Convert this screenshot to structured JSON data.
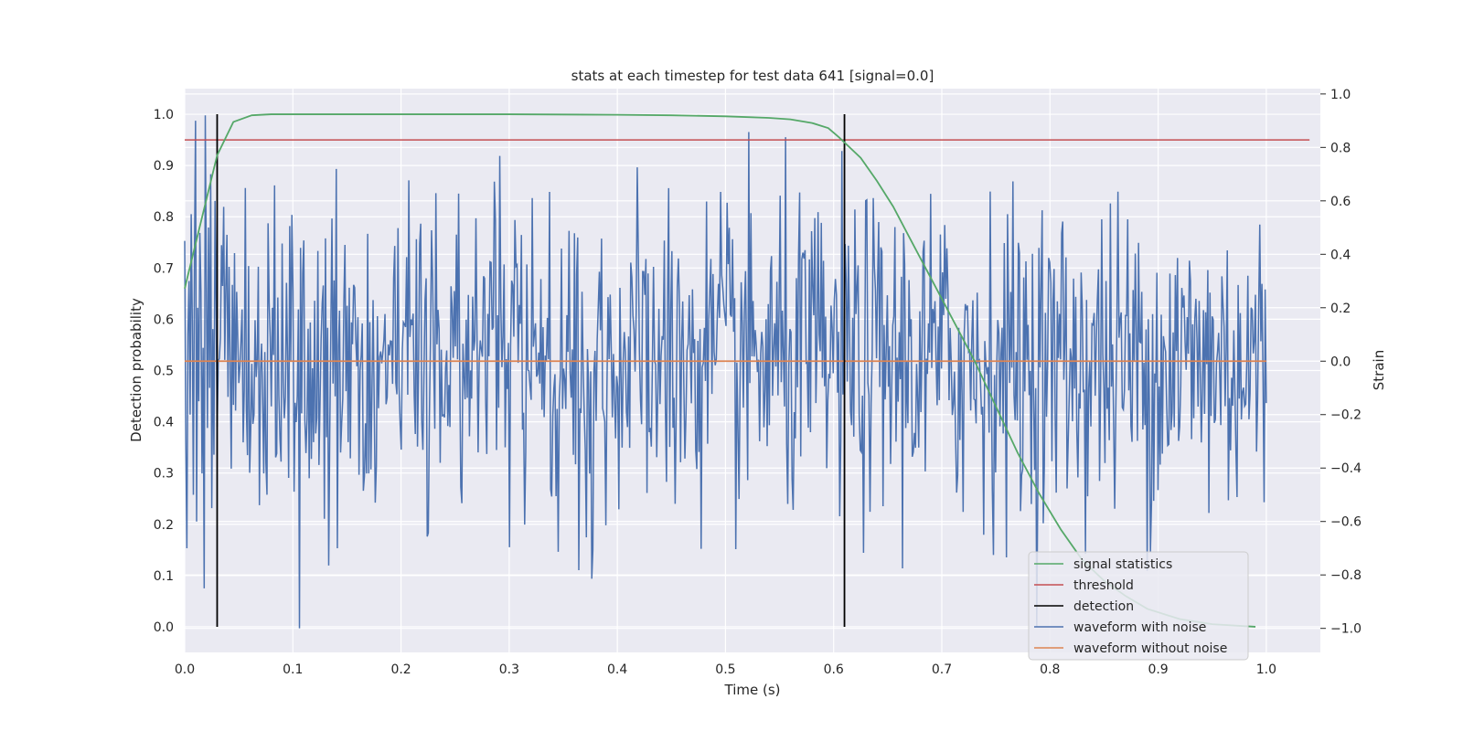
{
  "chart_data": {
    "type": "line",
    "title": "stats at each timestep for test data 641 [signal=0.0]",
    "xlabel": "Time (s)",
    "ylabel_left": "Detection probability",
    "ylabel_right": "Strain",
    "xlim": [
      0.0,
      1.05
    ],
    "ylim_left": [
      -0.05,
      1.05
    ],
    "ylim_right": [
      -1.09,
      1.02
    ],
    "xticks": [
      "0.0",
      "0.1",
      "0.2",
      "0.3",
      "0.4",
      "0.5",
      "0.6",
      "0.7",
      "0.8",
      "0.9",
      "1.0"
    ],
    "yticks_left": [
      "0.0",
      "0.1",
      "0.2",
      "0.3",
      "0.4",
      "0.5",
      "0.6",
      "0.7",
      "0.8",
      "0.9",
      "1.0"
    ],
    "yticks_right": [
      "−1.0",
      "−0.8",
      "−0.6",
      "−0.4",
      "−0.2",
      "0.0",
      "0.2",
      "0.4",
      "0.6",
      "0.8",
      "1.0"
    ],
    "grid": true,
    "legend_position": "lower-right",
    "series": [
      {
        "name": "signal statistics",
        "axis": "left",
        "color": "#55a868",
        "x": [
          0.0,
          0.015,
          0.03,
          0.045,
          0.062,
          0.08,
          0.1,
          0.2,
          0.3,
          0.4,
          0.45,
          0.5,
          0.54,
          0.56,
          0.58,
          0.595,
          0.605,
          0.615,
          0.625,
          0.64,
          0.655,
          0.67,
          0.69,
          0.71,
          0.73,
          0.75,
          0.77,
          0.79,
          0.81,
          0.83,
          0.85,
          0.87,
          0.89,
          0.92,
          0.95,
          0.99
        ],
        "y": [
          0.66,
          0.79,
          0.92,
          0.985,
          0.998,
          1.0,
          1.0,
          1.0,
          1.0,
          0.999,
          0.998,
          0.996,
          0.993,
          0.99,
          0.983,
          0.973,
          0.955,
          0.935,
          0.915,
          0.87,
          0.82,
          0.76,
          0.68,
          0.6,
          0.52,
          0.43,
          0.34,
          0.26,
          0.19,
          0.13,
          0.09,
          0.06,
          0.035,
          0.015,
          0.005,
          0.0
        ]
      },
      {
        "name": "threshold",
        "axis": "left",
        "color": "#c44e52",
        "x": [
          0.0,
          1.04
        ],
        "y": [
          0.95,
          0.95
        ]
      },
      {
        "name": "detection",
        "axis": "left",
        "color": "#000000",
        "x": [
          0.03,
          0.61
        ],
        "y_range": [
          0.0,
          1.0
        ]
      },
      {
        "name": "waveform with noise",
        "axis": "right",
        "color": "#4c72b0",
        "x_range": [
          0.0,
          1.0
        ],
        "n_points": 1000,
        "std": 0.3,
        "y_sample": [
          0.45,
          -0.3,
          -0.7,
          0.1,
          0.3,
          -0.2,
          0.55,
          0.15,
          -0.5,
          0.38,
          0.9,
          -0.6,
          0.2,
          -0.15,
          0.48,
          0.26,
          -0.42,
          0.05,
          -0.85,
          0.92,
          0.3,
          -0.25,
          0.5,
          -0.1,
          0.7,
          -0.55,
          0.12,
          -0.35,
          0.6,
          0.22
        ]
      },
      {
        "name": "waveform without noise",
        "axis": "right",
        "color": "#dd8452",
        "x": [
          0.0,
          1.0
        ],
        "y": [
          0.0,
          0.0
        ]
      }
    ]
  },
  "legend": {
    "items": [
      {
        "label": "signal statistics",
        "color": "#55a868"
      },
      {
        "label": "threshold",
        "color": "#c44e52"
      },
      {
        "label": "detection",
        "color": "#000000"
      },
      {
        "label": "waveform with noise",
        "color": "#4c72b0"
      },
      {
        "label": "waveform without noise",
        "color": "#dd8452"
      }
    ]
  }
}
